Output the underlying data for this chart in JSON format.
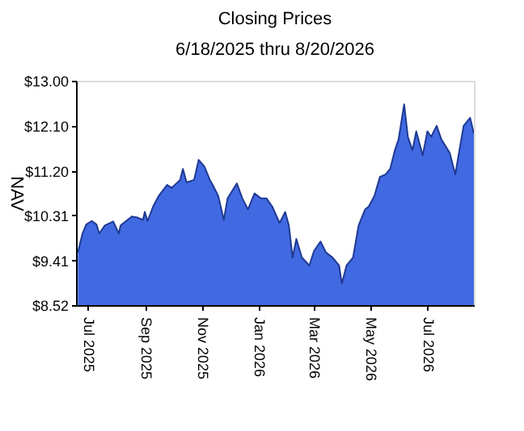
{
  "chart_data": {
    "type": "area",
    "title": "Closing Prices",
    "subtitle": "6/18/2025 thru 8/20/2026",
    "ylabel": "NAV",
    "x": [
      "2025-06-20",
      "2025-06-25",
      "2025-06-29",
      "2025-07-05",
      "2025-07-10",
      "2025-07-13",
      "2025-07-19",
      "2025-07-28",
      "2025-08-03",
      "2025-08-05",
      "2025-08-17",
      "2025-08-23",
      "2025-08-29",
      "2025-08-31",
      "2025-09-03",
      "2025-09-09",
      "2025-09-15",
      "2025-09-24",
      "2025-09-29",
      "2025-10-08",
      "2025-10-11",
      "2025-10-15",
      "2025-10-23",
      "2025-10-28",
      "2025-11-03",
      "2025-11-09",
      "2025-11-12",
      "2025-11-18",
      "2025-11-24",
      "2025-11-28",
      "2025-12-08",
      "2025-12-14",
      "2025-12-20",
      "2025-12-27",
      "2026-01-03",
      "2026-01-09",
      "2026-01-15",
      "2026-01-23",
      "2026-01-29",
      "2026-02-02",
      "2026-02-06",
      "2026-02-10",
      "2026-02-16",
      "2026-02-24",
      "2026-03-01",
      "2026-03-08",
      "2026-03-14",
      "2026-03-21",
      "2026-03-28",
      "2026-03-31",
      "2026-04-05",
      "2026-04-12",
      "2026-04-18",
      "2026-04-25",
      "2026-04-29",
      "2026-05-05",
      "2026-05-11",
      "2026-05-17",
      "2026-05-22",
      "2026-05-27",
      "2026-05-31",
      "2026-06-06",
      "2026-06-10",
      "2026-06-15",
      "2026-06-19",
      "2026-06-26",
      "2026-07-01",
      "2026-07-05",
      "2026-07-11",
      "2026-07-16",
      "2026-07-25",
      "2026-07-31",
      "2026-08-09",
      "2026-08-16",
      "2026-08-20"
    ],
    "series": [
      {
        "color": "#4169e1",
        "values": [
          9.57,
          9.95,
          10.13,
          10.2,
          10.13,
          9.95,
          10.11,
          10.19,
          9.95,
          10.11,
          10.29,
          10.27,
          10.22,
          10.38,
          10.2,
          10.49,
          10.7,
          10.92,
          10.86,
          11.02,
          11.24,
          10.97,
          11.02,
          11.42,
          11.29,
          11.02,
          10.92,
          10.7,
          10.22,
          10.65,
          10.95,
          10.65,
          10.43,
          10.75,
          10.65,
          10.65,
          10.49,
          10.16,
          10.38,
          10.11,
          9.47,
          9.84,
          9.47,
          9.31,
          9.6,
          9.79,
          9.57,
          9.47,
          9.31,
          8.95,
          9.31,
          9.47,
          10.11,
          10.43,
          10.49,
          10.7,
          11.08,
          11.13,
          11.24,
          11.61,
          11.83,
          12.53,
          11.88,
          11.61,
          11.99,
          11.51,
          11.99,
          11.88,
          12.1,
          11.83,
          11.56,
          11.13,
          12.1,
          12.26,
          11.94
        ]
      }
    ],
    "xlim": [
      "2025-06-18",
      "2026-08-20"
    ],
    "xticks": [
      {
        "value": "2025-07-01",
        "label": "Jul 2025"
      },
      {
        "value": "2025-09-01",
        "label": "Sep 2025"
      },
      {
        "value": "2025-11-01",
        "label": "Nov 2025"
      },
      {
        "value": "2026-01-01",
        "label": "Jan 2026"
      },
      {
        "value": "2026-03-01",
        "label": "Mar 2026"
      },
      {
        "value": "2026-05-01",
        "label": "May 2026"
      },
      {
        "value": "2026-07-01",
        "label": "Jul 2026"
      }
    ],
    "ylim": [
      8.52,
      13.0
    ],
    "yticks": [
      {
        "value": 8.52,
        "label": "$8.52"
      },
      {
        "value": 9.41,
        "label": "$9.41"
      },
      {
        "value": 10.31,
        "label": "$10.31"
      },
      {
        "value": 11.2,
        "label": "$11.20"
      },
      {
        "value": 12.1,
        "label": "$12.10"
      },
      {
        "value": 13.0,
        "label": "$13.00"
      }
    ],
    "grid": false
  }
}
